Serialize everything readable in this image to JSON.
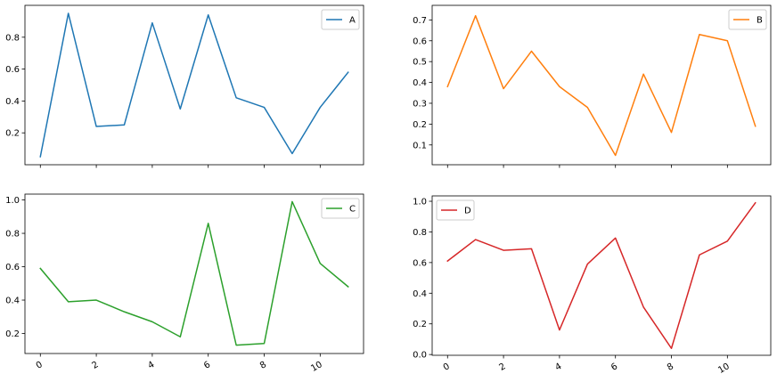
{
  "chart_data": [
    {
      "type": "line",
      "title": "",
      "xlabel": "",
      "ylabel": "",
      "x": [
        0,
        1,
        2,
        3,
        4,
        5,
        6,
        7,
        8,
        9,
        10,
        11
      ],
      "xlim": [
        -0.55,
        11.55
      ],
      "ylim": [
        0.0,
        1.0
      ],
      "yticks": [
        0.2,
        0.4,
        0.6,
        0.8
      ],
      "xticks": [
        0,
        2,
        4,
        6,
        8,
        10
      ],
      "show_xtick_labels": false,
      "legend_position": "top-right",
      "grid": false,
      "series": [
        {
          "name": "A",
          "color": "#1f77b4",
          "values": [
            0.05,
            0.95,
            0.24,
            0.25,
            0.89,
            0.35,
            0.94,
            0.42,
            0.36,
            0.07,
            0.36,
            0.58
          ]
        }
      ]
    },
    {
      "type": "line",
      "title": "",
      "xlabel": "",
      "ylabel": "",
      "x": [
        0,
        1,
        2,
        3,
        4,
        5,
        6,
        7,
        8,
        9,
        10,
        11
      ],
      "xlim": [
        -0.55,
        11.55
      ],
      "ylim": [
        0.005,
        0.77
      ],
      "yticks": [
        0.1,
        0.2,
        0.3,
        0.4,
        0.5,
        0.6,
        0.7
      ],
      "xticks": [
        0,
        2,
        4,
        6,
        8,
        10
      ],
      "show_xtick_labels": false,
      "legend_position": "top-right",
      "grid": false,
      "series": [
        {
          "name": "B",
          "color": "#ff7f0e",
          "values": [
            0.38,
            0.72,
            0.37,
            0.55,
            0.38,
            0.28,
            0.05,
            0.44,
            0.16,
            0.63,
            0.6,
            0.19
          ]
        }
      ]
    },
    {
      "type": "line",
      "title": "",
      "xlabel": "",
      "ylabel": "",
      "x": [
        0,
        1,
        2,
        3,
        4,
        5,
        6,
        7,
        8,
        9,
        10,
        11
      ],
      "xlim": [
        -0.55,
        11.55
      ],
      "ylim": [
        0.08,
        1.035
      ],
      "yticks": [
        0.2,
        0.4,
        0.6,
        0.8,
        1.0
      ],
      "xticks": [
        0,
        2,
        4,
        6,
        8,
        10
      ],
      "show_xtick_labels": true,
      "legend_position": "top-right",
      "grid": false,
      "series": [
        {
          "name": "C",
          "color": "#2ca02c",
          "values": [
            0.59,
            0.39,
            0.4,
            0.33,
            0.27,
            0.18,
            0.86,
            0.13,
            0.14,
            0.99,
            0.62,
            0.48
          ]
        }
      ]
    },
    {
      "type": "line",
      "title": "",
      "xlabel": "",
      "ylabel": "",
      "x": [
        0,
        1,
        2,
        3,
        4,
        5,
        6,
        7,
        8,
        9,
        10,
        11
      ],
      "xlim": [
        -0.55,
        11.55
      ],
      "ylim": [
        -0.005,
        1.035
      ],
      "yticks": [
        0.0,
        0.2,
        0.4,
        0.6,
        0.8,
        1.0
      ],
      "xticks": [
        0,
        2,
        4,
        6,
        8,
        10
      ],
      "show_xtick_labels": true,
      "legend_position": "top-left",
      "grid": false,
      "series": [
        {
          "name": "D",
          "color": "#d62728",
          "values": [
            0.61,
            0.75,
            0.68,
            0.69,
            0.16,
            0.59,
            0.76,
            0.31,
            0.04,
            0.65,
            0.74,
            0.99
          ]
        }
      ]
    }
  ]
}
